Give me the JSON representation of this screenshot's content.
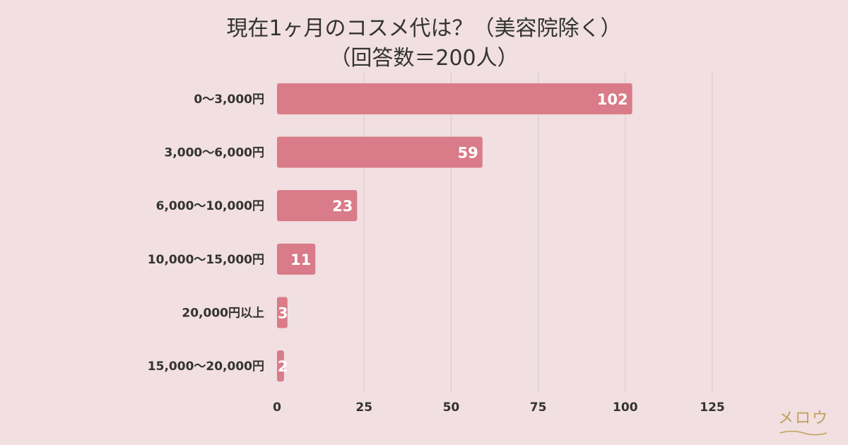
{
  "chart_data": {
    "type": "bar",
    "orientation": "horizontal",
    "title_lines": [
      "現在1ヶ月のコスメ代は？（美容院除く）",
      "（回答数＝200人）"
    ],
    "categories": [
      "0〜3,000円",
      "3,000〜6,000円",
      "6,000〜10,000円",
      "10,000〜15,000円",
      "20,000円以上",
      "15,000〜20,000円"
    ],
    "values": [
      102,
      59,
      23,
      11,
      3,
      2
    ],
    "xlim": [
      0,
      125
    ],
    "xticks": [
      0,
      25,
      50,
      75,
      100,
      125
    ],
    "grid": true,
    "bar_color": "#d97b88",
    "value_label_color": "#ffffff"
  },
  "brand": {
    "logo_text": "メロウ",
    "logo_color": "#bfa05a"
  }
}
